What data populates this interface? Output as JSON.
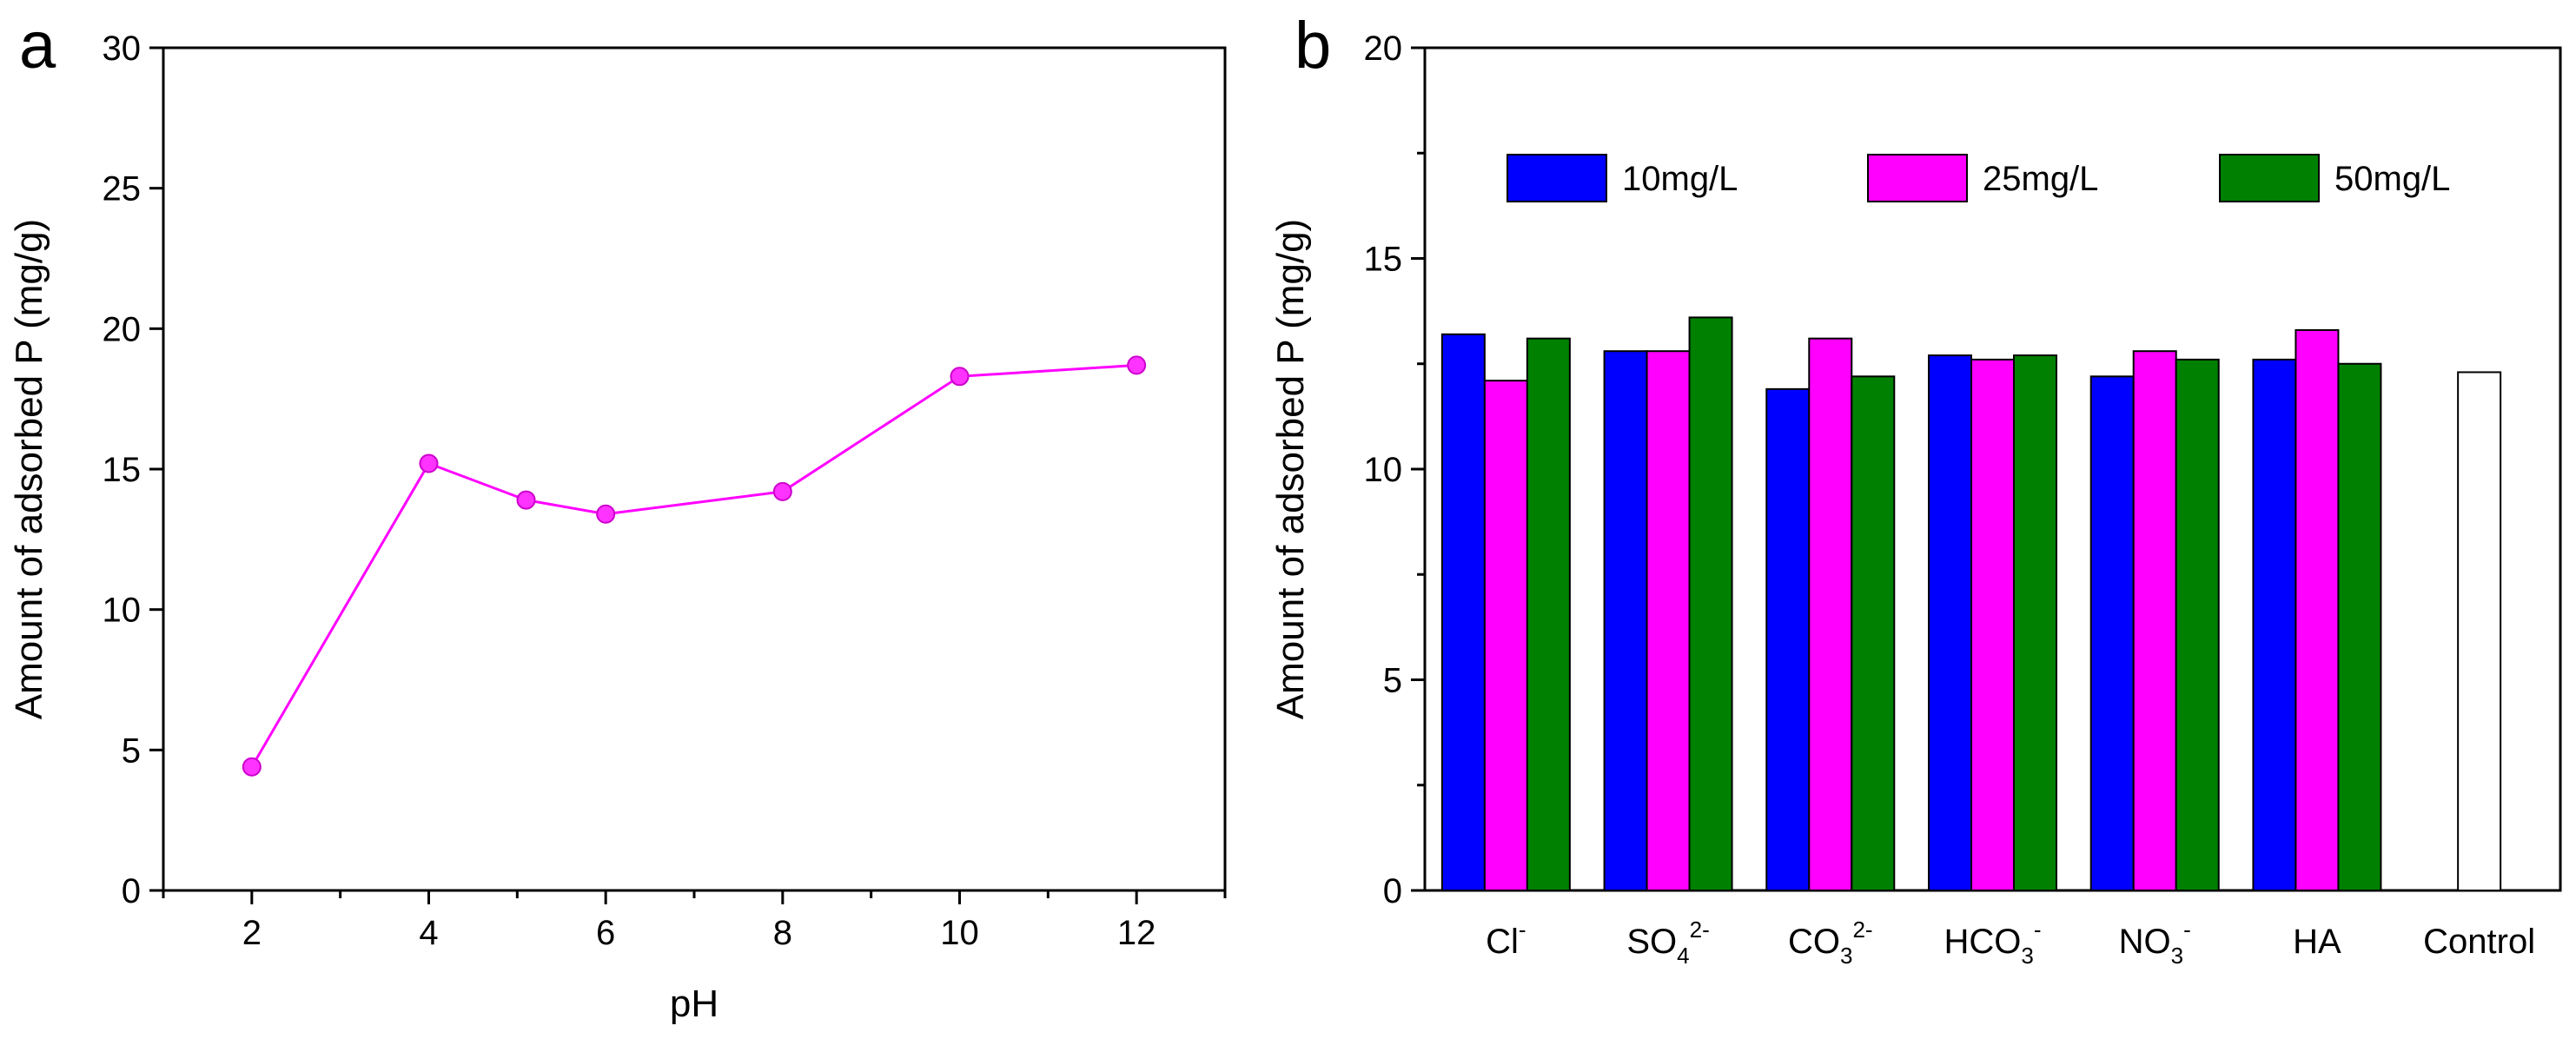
{
  "colors": {
    "line": "#ff00ff",
    "marker": "#ff33ff",
    "series_10": "#0000ff",
    "series_25": "#ff00ff",
    "series_50": "#008000",
    "control": "#ffffff",
    "axis": "#000000"
  },
  "chart_data": [
    {
      "id": "a",
      "panel_label": "a",
      "type": "line",
      "title": "",
      "xlabel": "pH",
      "ylabel": "Amount of adsorbed P (mg/g)",
      "xlim": [
        1,
        13
      ],
      "ylim": [
        0,
        30
      ],
      "x_major_ticks": [
        2,
        4,
        6,
        8,
        10,
        12
      ],
      "x_minor_ticks": [
        1,
        3,
        5,
        7,
        9,
        11,
        13
      ],
      "y_ticks": [
        0,
        5,
        10,
        15,
        20,
        25,
        30
      ],
      "grid": false,
      "series": [
        {
          "name": "adsorbed P",
          "x": [
            2,
            4,
            5.1,
            6,
            8,
            10,
            12
          ],
          "y": [
            4.4,
            15.2,
            13.9,
            13.4,
            14.2,
            18.3,
            18.7
          ]
        }
      ]
    },
    {
      "id": "b",
      "panel_label": "b",
      "type": "bar",
      "title": "",
      "xlabel": "",
      "ylabel": "Amount of adsorbed P (mg/g)",
      "ylim": [
        0,
        20
      ],
      "y_ticks": [
        0,
        5,
        10,
        15,
        20
      ],
      "grid": false,
      "legend_position": "top",
      "categories": [
        {
          "label": "Cl",
          "sup": "-",
          "sub": ""
        },
        {
          "label": "SO",
          "sub": "4",
          "sup": "2-"
        },
        {
          "label": "CO",
          "sub": "3",
          "sup": "2-"
        },
        {
          "label": "HCO",
          "sub": "3",
          "sup": "-"
        },
        {
          "label": "NO",
          "sub": "3",
          "sup": "-"
        },
        {
          "label": "HA",
          "sub": "",
          "sup": ""
        },
        {
          "label": "Control",
          "sub": "",
          "sup": ""
        }
      ],
      "series": [
        {
          "name": "10mg/L",
          "color_key": "series_10",
          "values": [
            13.2,
            12.8,
            11.9,
            12.7,
            12.2,
            12.6,
            null
          ]
        },
        {
          "name": "25mg/L",
          "color_key": "series_25",
          "values": [
            12.1,
            12.8,
            13.1,
            12.6,
            12.8,
            13.3,
            null
          ]
        },
        {
          "name": "50mg/L",
          "color_key": "series_50",
          "values": [
            13.1,
            13.6,
            12.2,
            12.7,
            12.6,
            12.5,
            null
          ]
        }
      ],
      "control": {
        "name": "Control",
        "color_key": "control",
        "value": 12.3
      }
    }
  ]
}
